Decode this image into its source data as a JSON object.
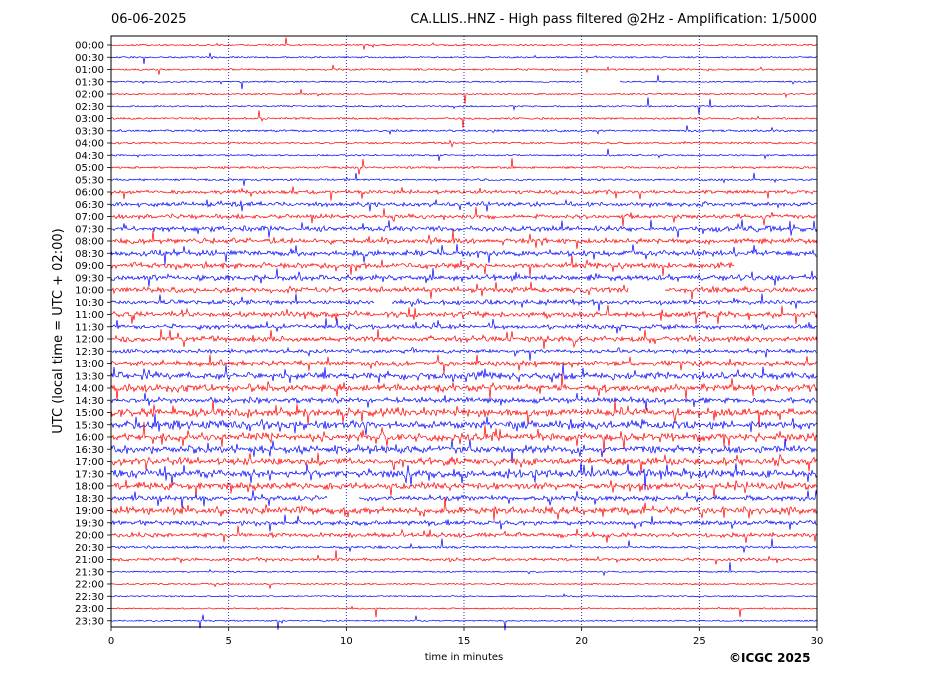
{
  "header": {
    "date": "06-06-2025",
    "title": "CA.LLIS..HNZ - High pass filtered @2Hz - Amplification: 1/5000"
  },
  "copyright": "©ICGC 2025",
  "chart_data": {
    "type": "line",
    "title": "CA.LLIS..HNZ - High pass filtered @2Hz - Amplification: 1/5000",
    "xlabel": "time in minutes",
    "ylabel": "UTC (local time = UTC + 02:00)",
    "xlim": [
      0,
      30
    ],
    "x_ticks": [
      0,
      5,
      10,
      15,
      20,
      25,
      30
    ],
    "x_tick_labels": [
      "0",
      "5",
      "10",
      "15",
      "20",
      "25",
      "30"
    ],
    "y_tick_labels": [
      "00:00",
      "00:30",
      "01:00",
      "01:30",
      "02:00",
      "02:30",
      "03:00",
      "03:30",
      "04:00",
      "04:30",
      "05:00",
      "05:30",
      "06:00",
      "06:30",
      "07:00",
      "07:30",
      "08:00",
      "08:30",
      "09:00",
      "09:30",
      "10:00",
      "10:30",
      "11:00",
      "11:30",
      "12:00",
      "12:30",
      "13:00",
      "13:30",
      "14:00",
      "14:30",
      "15:00",
      "15:30",
      "16:00",
      "16:30",
      "17:00",
      "17:30",
      "18:00",
      "18:30",
      "19:00",
      "19:30",
      "20:00",
      "20:30",
      "21:00",
      "21:30",
      "22:00",
      "22:30",
      "23:00",
      "23:30"
    ],
    "grid": "vertical dotted",
    "colors": {
      "even_rows": "#ff0000",
      "odd_rows": "#0000ff",
      "grid": "#0000aa"
    },
    "activity_level": [
      0.05,
      0.05,
      0.08,
      0.04,
      0.04,
      0.05,
      0.1,
      0.12,
      0.1,
      0.05,
      0.12,
      0.12,
      0.35,
      0.45,
      0.4,
      0.55,
      0.55,
      0.6,
      0.6,
      0.6,
      0.55,
      0.45,
      0.6,
      0.45,
      0.55,
      0.35,
      0.45,
      0.75,
      0.8,
      0.55,
      0.85,
      0.9,
      0.9,
      0.85,
      0.75,
      0.9,
      0.75,
      0.5,
      0.8,
      0.45,
      0.45,
      0.15,
      0.25,
      0.03,
      0.02,
      0.02,
      0.02,
      0.02
    ],
    "gaps": [
      {
        "row": 3,
        "from": 20.0,
        "to": 21.6
      },
      {
        "row": 18,
        "from": 26.5,
        "to": 30
      },
      {
        "row": 20,
        "from": 22.0,
        "to": 23.5
      },
      {
        "row": 21,
        "from": 11.2,
        "to": 11.9
      },
      {
        "row": 37,
        "from": 9.2,
        "to": 10.5
      }
    ]
  }
}
